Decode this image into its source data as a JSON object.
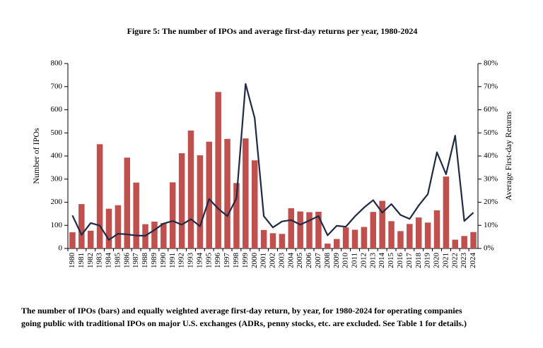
{
  "chart_data": {
    "type": "bar-line",
    "title": "Figure 5: The number of IPOs and average first-day returns per year, 1980-2024",
    "ylabel": "Number of IPOs",
    "y2label": "Average First-day Returns",
    "caption": [
      "The number of IPOs (bars) and equally weighted average first-day return, by year, for 1980-2024 for operating companies",
      "going public with traditional IPOs on major U.S. exchanges (ADRs, penny stocks, etc. are excluded. See Table 1 for details.)"
    ],
    "categories": [
      "1980",
      "1981",
      "1982",
      "1983",
      "1984",
      "1985",
      "1986",
      "1987",
      "1988",
      "1989",
      "1990",
      "1991",
      "1992",
      "1993",
      "1994",
      "1995",
      "1996",
      "1997",
      "1998",
      "1999",
      "2000",
      "2001",
      "2002",
      "2003",
      "2004",
      "2005",
      "2006",
      "2007",
      "2008",
      "2009",
      "2010",
      "2011",
      "2012",
      "2013",
      "2014",
      "2015",
      "2016",
      "2017",
      "2018",
      "2019",
      "2020",
      "2021",
      "2022",
      "2023",
      "2024"
    ],
    "series": [
      {
        "type": "bar",
        "color": "#c0504d",
        "values": [
          70,
          192,
          77,
          451,
          172,
          187,
          393,
          285,
          105,
          116,
          110,
          286,
          412,
          510,
          403,
          462,
          677,
          474,
          283,
          476,
          381,
          80,
          66,
          63,
          174,
          160,
          157,
          159,
          21,
          41,
          91,
          81,
          93,
          158,
          206,
          118,
          75,
          106,
          134,
          112,
          165,
          311,
          38,
          54,
          71
        ]
      },
      {
        "type": "line",
        "axis": "y2",
        "color": "#1f2a44",
        "values": [
          14.3,
          5.9,
          11.0,
          9.9,
          3.7,
          6.4,
          6.1,
          5.6,
          5.5,
          8.0,
          10.8,
          11.9,
          10.3,
          12.7,
          9.6,
          21.4,
          17.2,
          14.0,
          21.7,
          71.2,
          56.4,
          14.0,
          9.1,
          11.7,
          12.3,
          10.3,
          12.1,
          14.0,
          5.7,
          9.8,
          9.4,
          13.9,
          17.7,
          20.9,
          15.5,
          19.2,
          14.5,
          12.8,
          18.6,
          23.5,
          41.6,
          32.1,
          48.8,
          11.9,
          15.5
        ]
      }
    ],
    "ylim": [
      0,
      800
    ],
    "yticks": [
      0,
      100,
      200,
      300,
      400,
      500,
      600,
      700,
      800
    ],
    "y2lim": [
      0,
      80
    ],
    "y2ticks": [
      {
        "value": 0,
        "label": "0%"
      },
      {
        "value": 10,
        "label": "10%"
      },
      {
        "value": 20,
        "label": "20%"
      },
      {
        "value": 30,
        "label": "30%"
      },
      {
        "value": 40,
        "label": "40%"
      },
      {
        "value": 50,
        "label": "50%"
      },
      {
        "value": 60,
        "label": "60%"
      },
      {
        "value": 70,
        "label": "70%"
      },
      {
        "value": 80,
        "label": "80%"
      }
    ]
  }
}
